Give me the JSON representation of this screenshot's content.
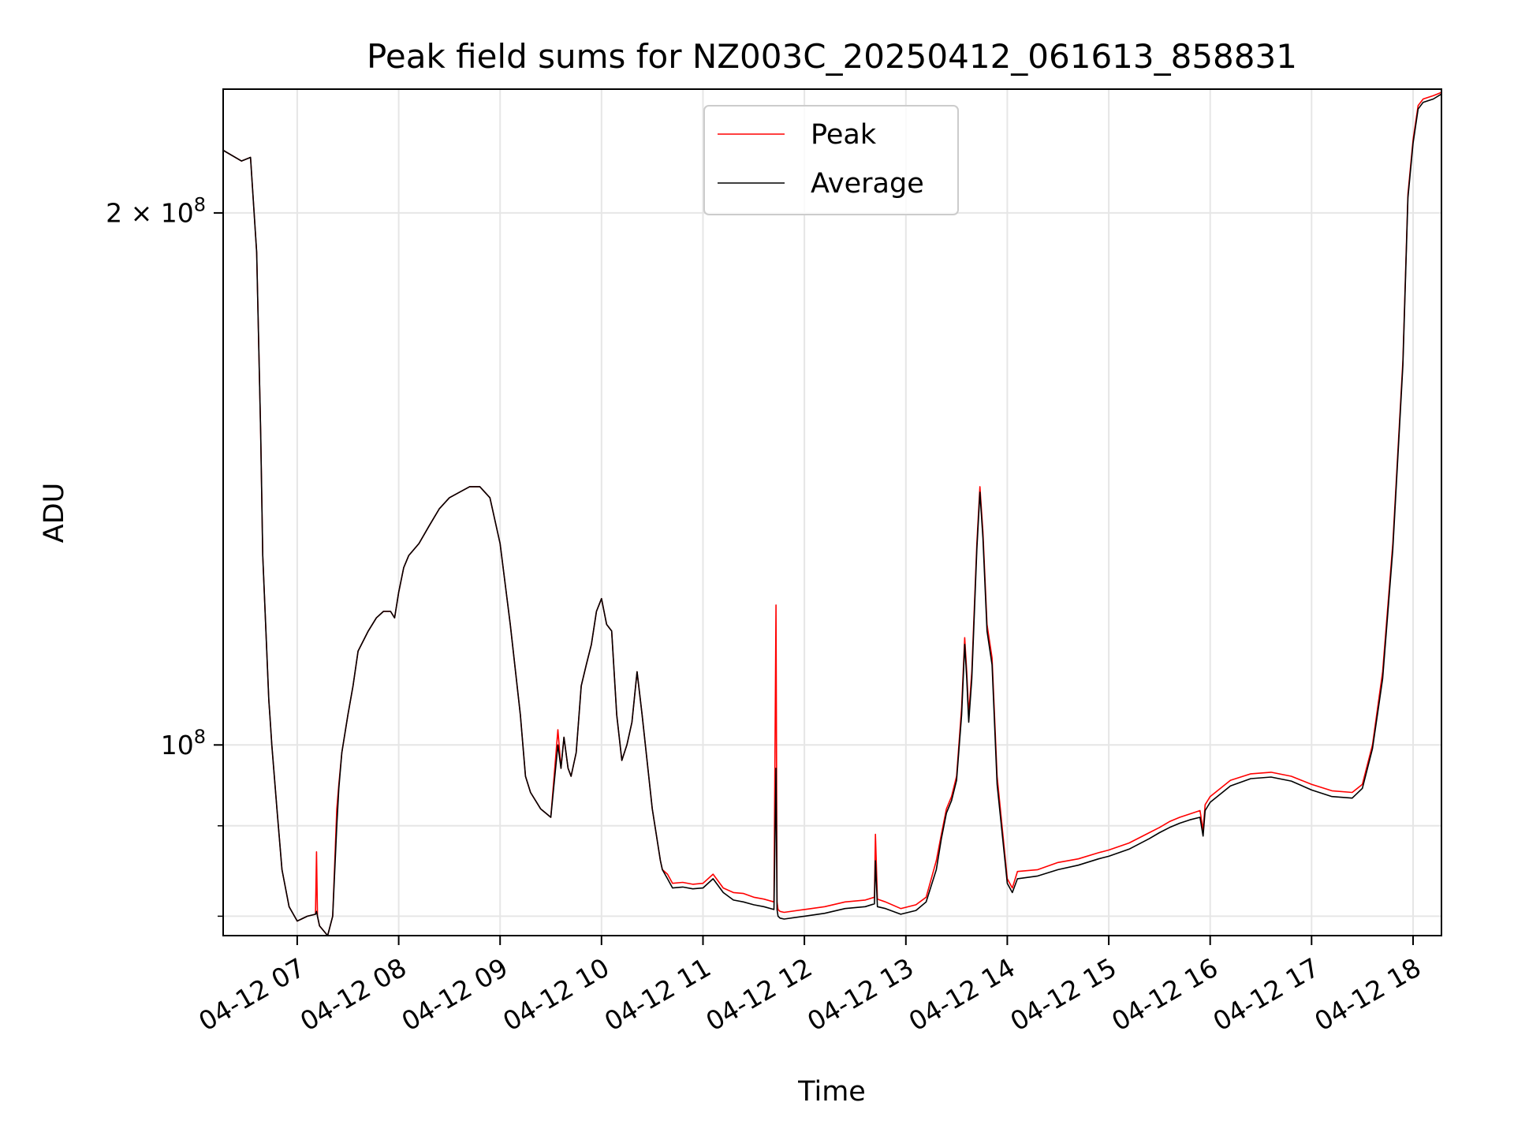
{
  "chart_data": {
    "type": "line",
    "title": "Peak field sums for NZ003C_20250412_061613_858831",
    "xlabel": "Time",
    "ylabel": "ADU",
    "y_scale": "log",
    "x_unit": "hour of 2025-04-12",
    "xlim": [
      6.27,
      18.28
    ],
    "ylim": [
      78000000,
      235000000
    ],
    "x_tick_values": [
      7,
      8,
      9,
      10,
      11,
      12,
      13,
      14,
      15,
      16,
      17,
      18
    ],
    "x_tick_labels": [
      "04-12 07",
      "04-12 08",
      "04-12 09",
      "04-12 10",
      "04-12 11",
      "04-12 12",
      "04-12 13",
      "04-12 14",
      "04-12 15",
      "04-12 16",
      "04-12 17",
      "04-12 18"
    ],
    "y_major_ticks": [
      {
        "value": 100000000,
        "label_base": "10",
        "label_exp": "8"
      },
      {
        "value": 200000000,
        "label_base": "2 × 10",
        "label_exp": "8"
      }
    ],
    "y_minor_ticks": [
      80000000,
      90000000
    ],
    "grid": true,
    "legend_position": "upper center",
    "series": [
      {
        "name": "Peak",
        "color": "#ff0000",
        "x": [
          6.27,
          6.45,
          6.54,
          6.6,
          6.64,
          6.66,
          6.7,
          6.72,
          6.73,
          6.75,
          6.8,
          6.85,
          6.92,
          7.0,
          7.1,
          7.18,
          7.19,
          7.2,
          7.22,
          7.3,
          7.35,
          7.39,
          7.41,
          7.44,
          7.5,
          7.55,
          7.6,
          7.7,
          7.78,
          7.85,
          7.92,
          7.96,
          8.0,
          8.05,
          8.1,
          8.2,
          8.3,
          8.4,
          8.5,
          8.6,
          8.7,
          8.8,
          8.9,
          9.0,
          9.1,
          9.2,
          9.25,
          9.3,
          9.4,
          9.5,
          9.57,
          9.6,
          9.63,
          9.67,
          9.7,
          9.75,
          9.8,
          9.85,
          9.9,
          9.95,
          10.0,
          10.05,
          10.1,
          10.15,
          10.2,
          10.25,
          10.3,
          10.35,
          10.4,
          10.5,
          10.58,
          10.6,
          10.65,
          10.7,
          10.8,
          10.9,
          11.0,
          11.1,
          11.2,
          11.3,
          11.4,
          11.5,
          11.6,
          11.7,
          11.72,
          11.73,
          11.74,
          11.76,
          11.8,
          12.0,
          12.2,
          12.4,
          12.6,
          12.69,
          12.7,
          12.72,
          12.8,
          12.95,
          13.1,
          13.2,
          13.3,
          13.35,
          13.4,
          13.45,
          13.5,
          13.55,
          13.58,
          13.6,
          13.62,
          13.65,
          13.7,
          13.73,
          13.76,
          13.8,
          13.85,
          13.9,
          14.0,
          14.05,
          14.1,
          14.3,
          14.5,
          14.7,
          14.9,
          15.0,
          15.2,
          15.4,
          15.5,
          15.6,
          15.7,
          15.8,
          15.9,
          15.93,
          15.95,
          16.0,
          16.2,
          16.4,
          16.6,
          16.8,
          17.0,
          17.2,
          17.4,
          17.5,
          17.6,
          17.7,
          17.8,
          17.9,
          17.95,
          18.0,
          18.05,
          18.1,
          18.2,
          18.28
        ],
        "y": [
          217000000,
          214000000,
          215000000,
          190000000,
          150000000,
          128000000,
          113000000,
          106000000,
          104000000,
          100000000,
          92000000,
          85000000,
          81000000,
          79500000,
          80000000,
          80200000,
          87000000,
          80000000,
          79000000,
          78000000,
          80000000,
          92000000,
          95000000,
          99000000,
          104000000,
          108000000,
          113000000,
          116000000,
          118000000,
          119000000,
          119000000,
          118000000,
          122000000,
          126000000,
          128000000,
          130000000,
          133000000,
          136000000,
          138000000,
          139000000,
          140000000,
          140000000,
          138000000,
          130000000,
          117000000,
          104000000,
          96000000,
          94000000,
          92000000,
          91000000,
          102000000,
          97000000,
          101000000,
          97000000,
          96000000,
          99000000,
          108000000,
          111000000,
          114000000,
          119000000,
          121000000,
          117000000,
          116000000,
          104000000,
          98000000,
          100000000,
          103000000,
          110000000,
          104000000,
          92000000,
          86000000,
          85000000,
          84500000,
          83500000,
          83600000,
          83400000,
          83500000,
          84500000,
          83000000,
          82500000,
          82400000,
          82000000,
          81800000,
          81500000,
          120000000,
          81500000,
          80700000,
          80500000,
          80400000,
          80700000,
          81000000,
          81500000,
          81700000,
          82000000,
          89000000,
          81800000,
          81500000,
          80800000,
          81200000,
          82000000,
          86000000,
          89000000,
          92000000,
          93500000,
          96000000,
          105000000,
          115000000,
          110000000,
          104000000,
          110000000,
          130000000,
          140000000,
          132000000,
          117000000,
          112000000,
          96000000,
          84000000,
          83000000,
          84800000,
          85000000,
          85800000,
          86200000,
          86900000,
          87200000,
          88000000,
          89200000,
          89800000,
          90500000,
          91000000,
          91400000,
          91800000,
          89500000,
          92500000,
          93500000,
          95500000,
          96300000,
          96500000,
          96000000,
          95000000,
          94200000,
          94000000,
          95000000,
          100000000,
          110000000,
          130000000,
          165000000,
          205000000,
          220000000,
          230000000,
          232000000,
          233000000,
          234000000
        ]
      },
      {
        "name": "Average",
        "color": "#000000",
        "x": [
          6.27,
          6.45,
          6.54,
          6.6,
          6.64,
          6.66,
          6.7,
          6.72,
          6.73,
          6.75,
          6.8,
          6.85,
          6.92,
          7.0,
          7.1,
          7.18,
          7.19,
          7.2,
          7.22,
          7.3,
          7.35,
          7.39,
          7.41,
          7.44,
          7.5,
          7.55,
          7.6,
          7.7,
          7.78,
          7.85,
          7.92,
          7.96,
          8.0,
          8.05,
          8.1,
          8.2,
          8.3,
          8.4,
          8.5,
          8.6,
          8.7,
          8.8,
          8.9,
          9.0,
          9.1,
          9.2,
          9.25,
          9.3,
          9.4,
          9.5,
          9.57,
          9.6,
          9.63,
          9.67,
          9.7,
          9.75,
          9.8,
          9.85,
          9.9,
          9.95,
          10.0,
          10.05,
          10.1,
          10.15,
          10.2,
          10.25,
          10.3,
          10.35,
          10.4,
          10.5,
          10.58,
          10.6,
          10.65,
          10.7,
          10.8,
          10.9,
          11.0,
          11.1,
          11.2,
          11.3,
          11.4,
          11.5,
          11.6,
          11.7,
          11.72,
          11.73,
          11.74,
          11.76,
          11.8,
          12.0,
          12.2,
          12.4,
          12.6,
          12.69,
          12.7,
          12.72,
          12.8,
          12.95,
          13.1,
          13.2,
          13.3,
          13.35,
          13.4,
          13.45,
          13.5,
          13.55,
          13.58,
          13.6,
          13.62,
          13.65,
          13.7,
          13.73,
          13.76,
          13.8,
          13.85,
          13.9,
          14.0,
          14.05,
          14.1,
          14.3,
          14.5,
          14.7,
          14.9,
          15.0,
          15.2,
          15.4,
          15.5,
          15.6,
          15.7,
          15.8,
          15.9,
          15.93,
          15.95,
          16.0,
          16.2,
          16.4,
          16.6,
          16.8,
          17.0,
          17.2,
          17.4,
          17.5,
          17.6,
          17.7,
          17.8,
          17.9,
          17.95,
          18.0,
          18.05,
          18.1,
          18.2,
          18.28
        ],
        "y": [
          217000000,
          214000000,
          215000000,
          190000000,
          150000000,
          128000000,
          113000000,
          106000000,
          104000000,
          100000000,
          92000000,
          85000000,
          81000000,
          79500000,
          80000000,
          80200000,
          80500000,
          80000000,
          79000000,
          78000000,
          80000000,
          90000000,
          94500000,
          99000000,
          104000000,
          108000000,
          113000000,
          116000000,
          118000000,
          119000000,
          119000000,
          118000000,
          122000000,
          126000000,
          128000000,
          130000000,
          133000000,
          136000000,
          138000000,
          139000000,
          140000000,
          140000000,
          138000000,
          130000000,
          117000000,
          104000000,
          96000000,
          94000000,
          92000000,
          91000000,
          100000000,
          97000000,
          101000000,
          97000000,
          96000000,
          99000000,
          108000000,
          111000000,
          114000000,
          119000000,
          121000000,
          117000000,
          116000000,
          104000000,
          98000000,
          100000000,
          103000000,
          110000000,
          104000000,
          92000000,
          86000000,
          85000000,
          84000000,
          83000000,
          83100000,
          82900000,
          83000000,
          84000000,
          82500000,
          81700000,
          81500000,
          81200000,
          81000000,
          80700000,
          97000000,
          80700000,
          80000000,
          79800000,
          79700000,
          80000000,
          80300000,
          80800000,
          81000000,
          81300000,
          86000000,
          81000000,
          80800000,
          80200000,
          80600000,
          81500000,
          85000000,
          88500000,
          91500000,
          93000000,
          95500000,
          104000000,
          114000000,
          109000000,
          103000000,
          109000000,
          129000000,
          139000000,
          131000000,
          116000000,
          111000000,
          95000000,
          83500000,
          82500000,
          84000000,
          84300000,
          85000000,
          85500000,
          86200000,
          86500000,
          87300000,
          88500000,
          89200000,
          89800000,
          90300000,
          90700000,
          91000000,
          88800000,
          91800000,
          92800000,
          94800000,
          95700000,
          95900000,
          95400000,
          94300000,
          93500000,
          93300000,
          94500000,
          99500000,
          109000000,
          129000000,
          164000000,
          204000000,
          219000000,
          229000000,
          231000000,
          232000000,
          233500000
        ]
      }
    ]
  }
}
